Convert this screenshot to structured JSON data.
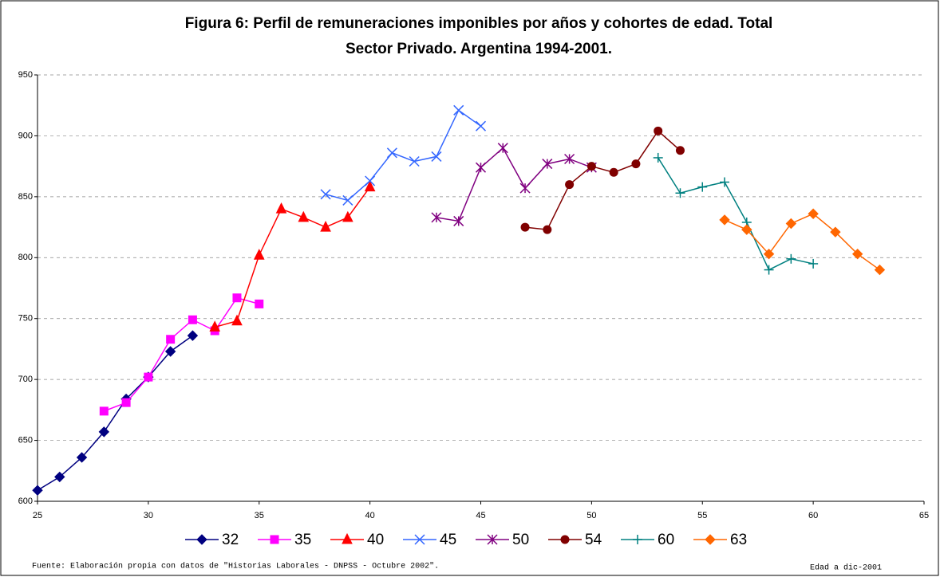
{
  "chart_data": {
    "type": "line",
    "title": [
      "Figura 6: Perfil de remuneraciones imponibles por años y cohortes de edad. Total",
      "Sector Privado. Argentina 1994-2001."
    ],
    "source": "Fuente: Elaboración propia con datos de \"Historias Laborales - DNPSS - Octubre 2002\".",
    "note": "Edad a dic-2001",
    "xlim": [
      25,
      65
    ],
    "xticks": [
      25,
      30,
      35,
      40,
      45,
      50,
      55,
      60,
      65
    ],
    "ylim": [
      600,
      950
    ],
    "yticks": [
      600,
      650,
      700,
      750,
      800,
      850,
      900,
      950
    ],
    "grid": true,
    "legend": "bottom",
    "series": [
      {
        "name": "32",
        "color": "#000080",
        "marker": "diamond",
        "x": [
          25,
          26,
          27,
          28,
          29,
          30,
          31,
          32
        ],
        "values": [
          609,
          620,
          636,
          657,
          684,
          702,
          723,
          736
        ]
      },
      {
        "name": "35",
        "color": "#ff00ff",
        "marker": "square",
        "x": [
          28,
          29,
          30,
          31,
          32,
          33,
          34,
          35
        ],
        "values": [
          674,
          681,
          702,
          733,
          749,
          740,
          767,
          762
        ]
      },
      {
        "name": "40",
        "color": "#ff0000",
        "marker": "triangle",
        "x": [
          33,
          34,
          35,
          36,
          37,
          38,
          39,
          40
        ],
        "values": [
          743,
          748,
          802,
          840,
          833,
          825,
          833,
          858
        ]
      },
      {
        "name": "45",
        "color": "#3366ff",
        "marker": "x",
        "x": [
          38,
          39,
          40,
          41,
          42,
          43,
          44,
          45
        ],
        "values": [
          852,
          847,
          863,
          886,
          879,
          883,
          921,
          908
        ]
      },
      {
        "name": "50",
        "color": "#800080",
        "marker": "star",
        "x": [
          43,
          44,
          45,
          46,
          47,
          48,
          49,
          50
        ],
        "values": [
          833,
          830,
          874,
          890,
          857,
          877,
          881,
          874
        ]
      },
      {
        "name": "54",
        "color": "#800000",
        "marker": "circle",
        "x": [
          47,
          48,
          49,
          50,
          51,
          52,
          53,
          54
        ],
        "values": [
          825,
          823,
          860,
          875,
          870,
          877,
          904,
          888
        ]
      },
      {
        "name": "60",
        "color": "#008080",
        "marker": "plus",
        "x": [
          53,
          54,
          55,
          56,
          57,
          58,
          59,
          60
        ],
        "values": [
          882,
          853,
          858,
          862,
          829,
          790,
          799,
          795
        ]
      },
      {
        "name": "63",
        "color": "#ff6600",
        "marker": "diamond",
        "x": [
          56,
          57,
          58,
          59,
          60,
          61,
          62,
          63
        ],
        "values": [
          831,
          823,
          803,
          828,
          836,
          821,
          803,
          790
        ]
      }
    ]
  }
}
